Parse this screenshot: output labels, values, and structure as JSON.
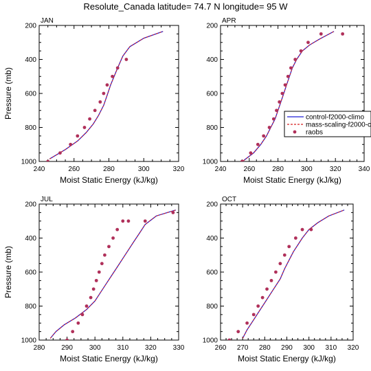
{
  "title": "Resolute_Canada  latitude= 74.7 N longitude= 95 W",
  "legend": {
    "entries": [
      {
        "label": "control-f2000-climo",
        "style": "line",
        "color": "#1f1fd6"
      },
      {
        "label": "mass-scaling-f2000-c",
        "style": "dashed",
        "color": "#d61f1f"
      },
      {
        "label": "raobs",
        "style": "dot",
        "color": "#b0305a"
      }
    ]
  },
  "chart_data": [
    {
      "type": "line",
      "panel": "JAN",
      "xlabel": "Moist Static Energy (kJ/kg)",
      "ylabel": "Pressure (mb)",
      "xlim": [
        240,
        320
      ],
      "ylim": [
        1000,
        200
      ],
      "xticks": [
        240,
        260,
        280,
        300,
        320
      ],
      "yticks": [
        200,
        400,
        600,
        800,
        1000
      ],
      "series": [
        {
          "name": "control-f2000-climo",
          "kind": "line",
          "color": "#1f1fd6",
          "x": [
            246,
            255,
            262,
            267,
            271,
            274,
            277,
            279,
            281,
            283,
            285,
            288,
            292,
            300,
            311
          ],
          "y": [
            985,
            930,
            880,
            830,
            780,
            730,
            670,
            610,
            550,
            500,
            450,
            380,
            325,
            275,
            235
          ]
        },
        {
          "name": "mass-scaling-f2000-c",
          "kind": "dashed",
          "color": "#d61f1f",
          "x": [
            246,
            255,
            262,
            267,
            271,
            274,
            277,
            279,
            281,
            283,
            285,
            288,
            292,
            300,
            311
          ],
          "y": [
            985,
            930,
            880,
            830,
            780,
            730,
            670,
            610,
            550,
            500,
            450,
            380,
            325,
            275,
            235
          ]
        },
        {
          "name": "raobs",
          "kind": "dots",
          "color": "#b0305a",
          "x": [
            245,
            252,
            258,
            262,
            266,
            269,
            272,
            275,
            277,
            279,
            282,
            285,
            290
          ],
          "y": [
            1000,
            950,
            900,
            850,
            800,
            750,
            700,
            650,
            600,
            550,
            500,
            450,
            400
          ]
        }
      ]
    },
    {
      "type": "line",
      "panel": "APR",
      "xlabel": "Moist Static Energy (kJ/kg)",
      "ylabel": "",
      "xlim": [
        240,
        340
      ],
      "ylim": [
        1000,
        200
      ],
      "xticks": [
        240,
        260,
        280,
        300,
        320,
        340
      ],
      "yticks": [
        200,
        400,
        600,
        800,
        1000
      ],
      "series": [
        {
          "name": "control-f2000-climo",
          "kind": "line",
          "color": "#1f1fd6",
          "x": [
            256,
            263,
            268,
            272,
            275,
            278,
            280,
            282,
            284,
            286,
            288,
            290,
            293,
            297,
            302,
            309,
            319
          ],
          "y": [
            995,
            950,
            900,
            850,
            800,
            750,
            700,
            650,
            600,
            550,
            500,
            450,
            400,
            350,
            315,
            280,
            235
          ]
        },
        {
          "name": "mass-scaling-f2000-c",
          "kind": "dashed",
          "color": "#d61f1f",
          "x": [
            256,
            263,
            268,
            272,
            275,
            278,
            280,
            282,
            284,
            286,
            288,
            290,
            293,
            297,
            302,
            309,
            319
          ],
          "y": [
            995,
            950,
            900,
            850,
            800,
            750,
            700,
            650,
            600,
            550,
            500,
            450,
            400,
            350,
            315,
            280,
            235
          ]
        },
        {
          "name": "raobs",
          "kind": "dots",
          "color": "#b0305a",
          "x": [
            255,
            261,
            266,
            270,
            274,
            277,
            279,
            281,
            283,
            285,
            287,
            289,
            292,
            296,
            301,
            310,
            325
          ],
          "y": [
            1000,
            950,
            900,
            850,
            800,
            750,
            700,
            650,
            600,
            550,
            500,
            450,
            400,
            350,
            300,
            250,
            250
          ]
        }
      ]
    },
    {
      "type": "line",
      "panel": "JUL",
      "xlabel": "Moist Static Energy (kJ/kg)",
      "ylabel": "Pressure (mb)",
      "xlim": [
        280,
        330
      ],
      "ylim": [
        1000,
        200
      ],
      "xticks": [
        280,
        290,
        300,
        310,
        320,
        330
      ],
      "yticks": [
        200,
        400,
        600,
        800,
        1000
      ],
      "series": [
        {
          "name": "control-f2000-climo",
          "kind": "line",
          "color": "#1f1fd6",
          "x": [
            284,
            286,
            289,
            293,
            297,
            300,
            302,
            304,
            306,
            308,
            310,
            312,
            314,
            316,
            318,
            322,
            329
          ],
          "y": [
            990,
            950,
            910,
            870,
            820,
            770,
            720,
            670,
            620,
            570,
            520,
            470,
            420,
            370,
            320,
            270,
            235
          ]
        },
        {
          "name": "mass-scaling-f2000-c",
          "kind": "dashed",
          "color": "#d61f1f",
          "x": [
            284,
            286,
            289,
            293,
            297,
            300,
            302,
            304,
            306,
            308,
            310,
            312,
            314,
            316,
            318,
            322,
            329
          ],
          "y": [
            990,
            950,
            910,
            870,
            820,
            770,
            720,
            670,
            620,
            570,
            520,
            470,
            420,
            370,
            320,
            270,
            235
          ]
        },
        {
          "name": "raobs",
          "kind": "dots",
          "color": "#b0305a",
          "x": [
            290,
            292,
            294,
            295.5,
            297,
            298.5,
            299.5,
            300.5,
            301.5,
            302.5,
            303.5,
            305,
            306.5,
            308,
            310,
            312,
            318,
            328
          ],
          "y": [
            1000,
            950,
            900,
            850,
            800,
            750,
            700,
            650,
            600,
            550,
            500,
            450,
            400,
            350,
            300,
            300,
            300,
            250
          ]
        }
      ]
    },
    {
      "type": "line",
      "panel": "OCT",
      "xlabel": "Moist Static Energy (kJ/kg)",
      "ylabel": "",
      "xlim": [
        260,
        320
      ],
      "ylim": [
        1000,
        200
      ],
      "xticks": [
        260,
        270,
        280,
        290,
        300,
        310,
        320
      ],
      "yticks": [
        200,
        400,
        600,
        800,
        1000
      ],
      "series": [
        {
          "name": "control-f2000-climo",
          "kind": "line",
          "color": "#1f1fd6",
          "x": [
            270,
            272,
            275,
            278,
            281,
            284,
            287,
            289,
            291,
            293,
            295,
            297,
            300,
            304,
            309,
            316
          ],
          "y": [
            990,
            940,
            880,
            820,
            760,
            700,
            640,
            580,
            530,
            480,
            440,
            400,
            350,
            310,
            270,
            235
          ]
        },
        {
          "name": "mass-scaling-f2000-c",
          "kind": "dashed",
          "color": "#d61f1f",
          "x": [
            270,
            272,
            275,
            278,
            281,
            284,
            287,
            289,
            291,
            293,
            295,
            297,
            300,
            304,
            309,
            316
          ],
          "y": [
            990,
            940,
            880,
            820,
            760,
            700,
            640,
            580,
            530,
            480,
            440,
            400,
            350,
            310,
            270,
            235
          ]
        },
        {
          "name": "raobs",
          "kind": "dots",
          "color": "#b0305a",
          "x": [
            264,
            268,
            272,
            275,
            277,
            279,
            281,
            283,
            285,
            287,
            289,
            291,
            294,
            297,
            301
          ],
          "y": [
            1000,
            950,
            900,
            850,
            800,
            750,
            700,
            650,
            600,
            550,
            500,
            450,
            400,
            350,
            350
          ]
        }
      ]
    }
  ]
}
